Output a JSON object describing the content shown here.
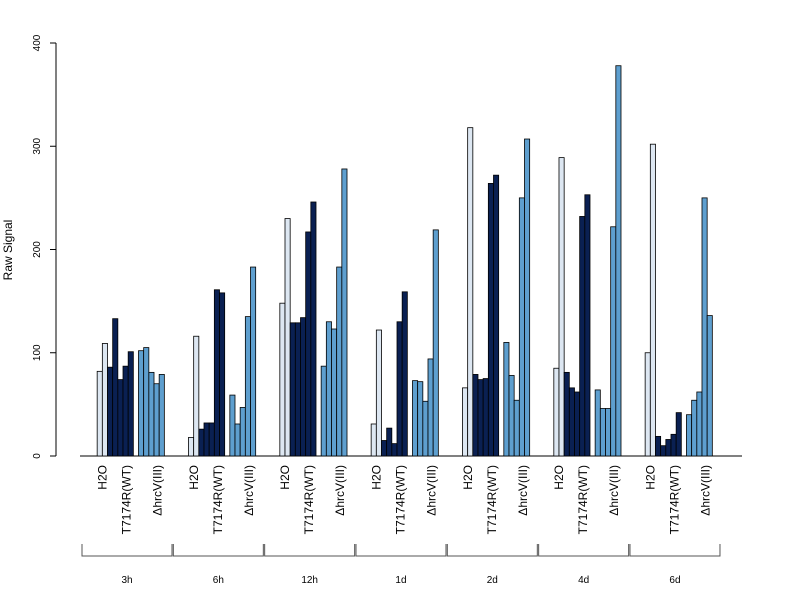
{
  "chart_data": {
    "type": "bar",
    "ylabel": "Raw Signal",
    "ylim": [
      0,
      400
    ],
    "yticks": [
      0,
      100,
      200,
      300,
      400
    ],
    "treatments": [
      "H2O",
      "T7174R(WT)",
      "ΔhrcV(III)"
    ],
    "treatment_colors": {
      "H2O": "#dde7f2",
      "T7174R(WT)": "#0a2052",
      "ΔhrcV(III)": "#5e9fcf"
    },
    "groups": [
      {
        "time": "3h",
        "H2O": [
          0,
          82,
          109
        ],
        "T7174R(WT)": [
          86,
          133,
          74,
          87,
          101
        ],
        "ΔhrcV(III)": [
          102,
          105,
          81,
          70,
          79
        ]
      },
      {
        "time": "6h",
        "H2O": [
          0,
          18,
          116
        ],
        "T7174R(WT)": [
          26,
          32,
          32,
          161,
          158
        ],
        "ΔhrcV(III)": [
          59,
          31,
          47,
          135,
          183
        ]
      },
      {
        "time": "12h",
        "H2O": [
          0,
          148,
          230
        ],
        "T7174R(WT)": [
          129,
          129,
          134,
          217,
          246
        ],
        "ΔhrcV(III)": [
          87,
          130,
          123,
          183,
          278
        ]
      },
      {
        "time": "1d",
        "H2O": [
          0,
          31,
          122
        ],
        "T7174R(WT)": [
          15,
          27,
          12,
          130,
          159
        ],
        "ΔhrcV(III)": [
          73,
          72,
          53,
          94,
          219
        ]
      },
      {
        "time": "2d",
        "H2O": [
          0,
          66,
          318
        ],
        "T7174R(WT)": [
          79,
          74,
          75,
          264,
          272
        ],
        "ΔhrcV(III)": [
          110,
          78,
          54,
          250,
          307
        ]
      },
      {
        "time": "4d",
        "H2O": [
          0,
          85,
          289
        ],
        "T7174R(WT)": [
          81,
          66,
          62,
          232,
          253
        ],
        "ΔhrcV(III)": [
          64,
          46,
          46,
          222,
          378
        ]
      },
      {
        "time": "6d",
        "H2O": [
          0,
          100,
          302
        ],
        "T7174R(WT)": [
          19,
          10,
          16,
          21,
          42
        ],
        "ΔhrcV(III)": [
          40,
          54,
          62,
          250,
          136
        ]
      }
    ]
  }
}
